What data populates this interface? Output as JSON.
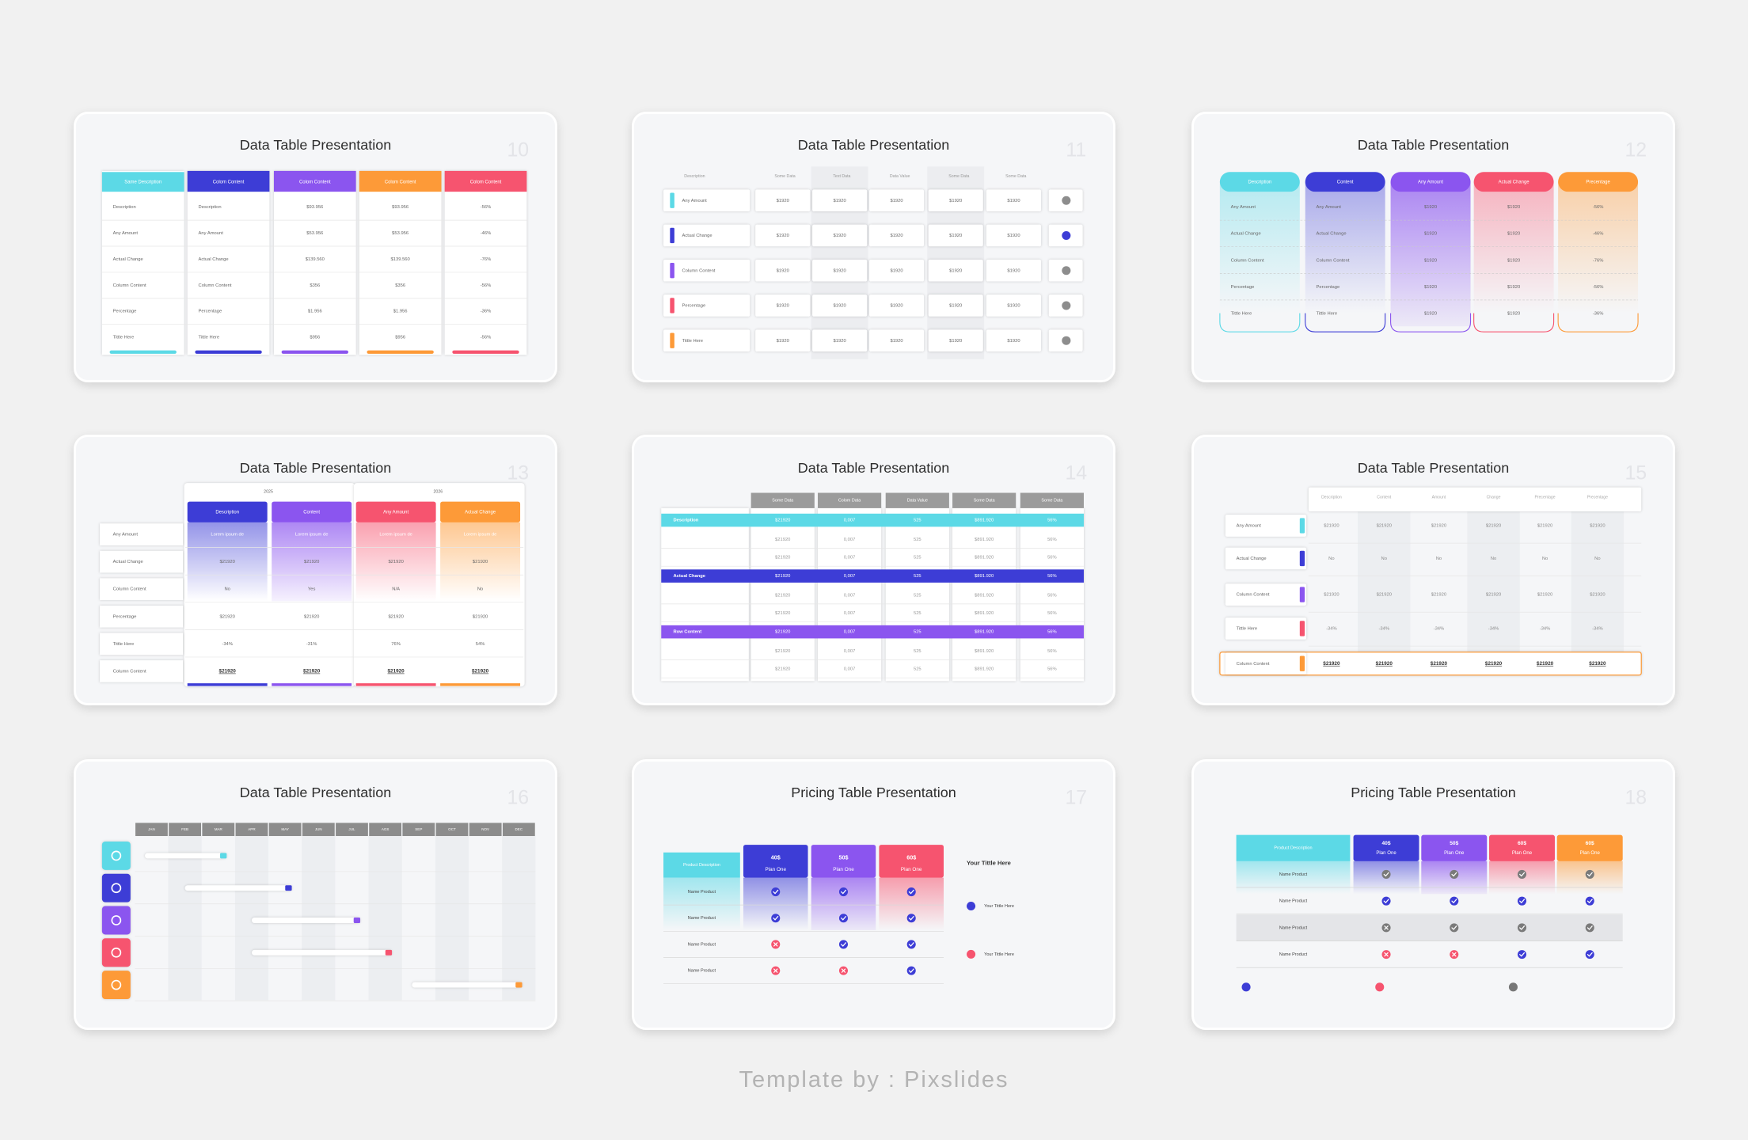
{
  "slides": [
    {
      "number": "10",
      "title": "Data Table Presentation",
      "headers": [
        "Same Description",
        "Colom Content",
        "Colom Content",
        "Colom Content",
        "Colom Content"
      ],
      "rows": [
        [
          "Description",
          "Description",
          "$93.956",
          "$93.956",
          "-56%"
        ],
        [
          "Any Amount",
          "Any Amount",
          "$53.956",
          "$53.956",
          "-46%"
        ],
        [
          "Actual Change",
          "Actual Change",
          "$139.560",
          "$139.560",
          "-76%"
        ],
        [
          "Column Content",
          "Column Content",
          "$356",
          "$356",
          "-56%"
        ],
        [
          "Percentage",
          "Percentage",
          "$1.956",
          "$1.956",
          "-36%"
        ],
        [
          "Tittle Here",
          "Tittle Here",
          "$956",
          "$956",
          "-56%"
        ]
      ]
    },
    {
      "number": "11",
      "title": "Data Table Presentation",
      "headers": [
        "Description",
        "Some Data",
        "Text Data",
        "Data Value",
        "Some Data",
        "Some Data"
      ],
      "rows": [
        {
          "label": "Any Amount",
          "values": [
            "$1920",
            "$1920",
            "$1920",
            "$1920",
            "$1920"
          ]
        },
        {
          "label": "Actual Change",
          "values": [
            "$1920",
            "$1920",
            "$1920",
            "$1920",
            "$1920"
          ]
        },
        {
          "label": "Column Content",
          "values": [
            "$1920",
            "$1920",
            "$1920",
            "$1920",
            "$1920"
          ]
        },
        {
          "label": "Percentage",
          "values": [
            "$1920",
            "$1920",
            "$1920",
            "$1920",
            "$1920"
          ]
        },
        {
          "label": "Tittle Here",
          "values": [
            "$1920",
            "$1920",
            "$1920",
            "$1920",
            "$1920"
          ]
        }
      ]
    },
    {
      "number": "12",
      "title": "Data Table Presentation",
      "headers": [
        "Description",
        "Content",
        "Any Amount",
        "Actual Change",
        "Precentage"
      ],
      "rows": [
        [
          "Any Amount",
          "Any Amount",
          "$1920",
          "$1920",
          "-56%"
        ],
        [
          "Actual Change",
          "Actual Change",
          "$1920",
          "$1920",
          "-46%"
        ],
        [
          "Column Content",
          "Column Content",
          "$1920",
          "$1920",
          "-76%"
        ],
        [
          "Percentage",
          "Percentage",
          "$1920",
          "$1920",
          "-56%"
        ],
        [
          "Tittle Here",
          "Tittle Here",
          "$1920",
          "$1920",
          "-36%"
        ]
      ]
    },
    {
      "number": "13",
      "title": "Data Table Presentation",
      "years": [
        "2025",
        "2026"
      ],
      "headers": [
        "Description",
        "Content",
        "Any Amount",
        "Actual Change"
      ],
      "rows": [
        {
          "label": "Any Amount",
          "values": [
            "Lorem ipsum de",
            "Lorem ipsum de",
            "Lorem ipsum de",
            "Lorem ipsum de"
          ]
        },
        {
          "label": "Actual Change",
          "values": [
            "$21920",
            "$21920",
            "$21920",
            "$21920"
          ]
        },
        {
          "label": "Column Content",
          "values": [
            "No",
            "Yes",
            "N/A",
            "No"
          ]
        },
        {
          "label": "Percentage",
          "values": [
            "$21920",
            "$21920",
            "$21920",
            "$21920"
          ]
        },
        {
          "label": "Tittle Here",
          "values": [
            "-34%",
            "-31%",
            "76%",
            "54%"
          ]
        },
        {
          "label": "Column Content",
          "values": [
            "$21920",
            "$21920",
            "$21920",
            "$21920"
          ]
        }
      ]
    },
    {
      "number": "14",
      "title": "Data Table Presentation",
      "headers": [
        "Some Data",
        "Colom Data",
        "Data Value",
        "Some Data",
        "Some Data"
      ],
      "groups": [
        {
          "label": "Description",
          "rows": [
            [
              "$21920",
              "0,007",
              "525",
              "$891.920",
              "56%"
            ],
            [
              "$21920",
              "0,007",
              "525",
              "$891.920",
              "56%"
            ],
            [
              "$21920",
              "0,007",
              "525",
              "$891.920",
              "56%"
            ]
          ]
        },
        {
          "label": "Actual Change",
          "rows": [
            [
              "$21920",
              "0,007",
              "525",
              "$891.920",
              "56%"
            ],
            [
              "$21920",
              "0,007",
              "525",
              "$891.920",
              "56%"
            ],
            [
              "$21920",
              "0,007",
              "525",
              "$891.920",
              "56%"
            ]
          ]
        },
        {
          "label": "Row Content",
          "rows": [
            [
              "$21920",
              "0,007",
              "525",
              "$891.920",
              "56%"
            ],
            [
              "$21920",
              "0,007",
              "525",
              "$891.920",
              "56%"
            ],
            [
              "$21920",
              "0,007",
              "525",
              "$891.920",
              "56%"
            ]
          ]
        }
      ]
    },
    {
      "number": "15",
      "title": "Data Table Presentation",
      "headers": [
        "Description",
        "Content",
        "Amount",
        "Change",
        "Precentage",
        "Precentage"
      ],
      "rows": [
        {
          "label": "Any Amount",
          "values": [
            "$21920",
            "$21920",
            "$21920",
            "$21920",
            "$21920",
            "$21920"
          ]
        },
        {
          "label": "Actual Change",
          "values": [
            "No",
            "No",
            "No",
            "No",
            "No",
            "No"
          ]
        },
        {
          "label": "Column Content",
          "values": [
            "$21920",
            "$21920",
            "$21920",
            "$21920",
            "$21920",
            "$21920"
          ]
        },
        {
          "label": "Tittle Here",
          "values": [
            "-34%",
            "-34%",
            "-34%",
            "-34%",
            "-34%",
            "-34%"
          ]
        },
        {
          "label": "Column Content",
          "values": [
            "$21920",
            "$21920",
            "$21920",
            "$21920",
            "$21920",
            "$21920"
          ]
        }
      ]
    },
    {
      "number": "16",
      "title": "Data Table Presentation",
      "months": [
        "JAN",
        "FEB",
        "MAR",
        "APR",
        "MAY",
        "JUN",
        "JUL",
        "AGS",
        "SEP",
        "OCT",
        "NOV",
        "DEC"
      ],
      "tasks": [
        {
          "start": 0.3,
          "end": 2.75
        },
        {
          "start": 1.5,
          "end": 4.7
        },
        {
          "start": 3.5,
          "end": 6.75
        },
        {
          "start": 3.5,
          "end": 7.7
        },
        {
          "start": 8.3,
          "end": 11.6
        }
      ]
    },
    {
      "number": "17",
      "title": "Pricing Table Presentation",
      "product_header": "Product Description",
      "plans": [
        {
          "price": "40$",
          "name": "Plan One"
        },
        {
          "price": "50$",
          "name": "Plan One"
        },
        {
          "price": "60$",
          "name": "Plan One"
        }
      ],
      "rows": [
        {
          "label": "Name Product",
          "checks": [
            true,
            true,
            true
          ]
        },
        {
          "label": "Name Product",
          "checks": [
            true,
            true,
            true
          ]
        },
        {
          "label": "Name Product",
          "checks": [
            false,
            true,
            true
          ]
        },
        {
          "label": "Name Product",
          "checks": [
            false,
            false,
            true
          ]
        }
      ],
      "side": {
        "title": "Your Tittle Here",
        "items": [
          "Your Tittle Here",
          "Your Tittle Here"
        ]
      }
    },
    {
      "number": "18",
      "title": "Pricing Table Presentation",
      "product_header": "Product Description",
      "plans": [
        {
          "price": "40$",
          "name": "Plan One"
        },
        {
          "price": "50$",
          "name": "Plan One"
        },
        {
          "price": "60$",
          "name": "Plan One"
        },
        {
          "price": "60$",
          "name": "Plan One"
        }
      ],
      "rows": [
        {
          "label": "Name Product",
          "checks": [
            true,
            true,
            true,
            true
          ]
        },
        {
          "label": "Name Product",
          "checks": [
            true,
            true,
            true,
            true
          ]
        },
        {
          "label": "Name Product",
          "checks": [
            false,
            true,
            true,
            true
          ]
        },
        {
          "label": "Name Product",
          "checks": [
            false,
            false,
            true,
            true
          ]
        }
      ]
    }
  ],
  "footer": "Template by : Pixslides"
}
